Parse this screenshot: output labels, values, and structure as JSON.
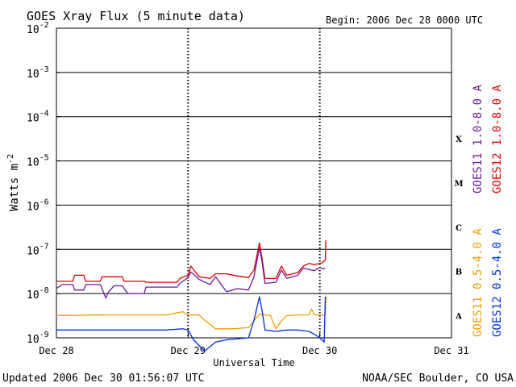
{
  "chart_data": {
    "type": "line",
    "title": "GOES Xray Flux (5 minute data)",
    "begin_label": "Begin:  2006 Dec 28 0000 UTC",
    "ylabel": "Watts m",
    "ylabel_exp": "-2",
    "xlabel": "Universal Time",
    "footer_left": "Updated 2006 Dec 30 01:56:07 UTC",
    "footer_right": "NOAA/SEC Boulder, CO USA",
    "y_scale": "log",
    "ylim": [
      1e-09,
      0.01
    ],
    "xlim": [
      0,
      72
    ],
    "x_unit": "hours since Dec 28 0000 UTC",
    "x_ticks": [
      {
        "x": 0,
        "label": "Dec 28"
      },
      {
        "x": 24,
        "label": "Dec 29"
      },
      {
        "x": 48,
        "label": "Dec 30"
      },
      {
        "x": 72,
        "label": "Dec 31"
      }
    ],
    "y_ticks": [
      {
        "exp": -2,
        "label": "10",
        "sup": "-2"
      },
      {
        "exp": -3,
        "label": "10",
        "sup": "-3"
      },
      {
        "exp": -4,
        "label": "10",
        "sup": "-4"
      },
      {
        "exp": -5,
        "label": "10",
        "sup": "-5"
      },
      {
        "exp": -6,
        "label": "10",
        "sup": "-6"
      },
      {
        "exp": -7,
        "label": "10",
        "sup": "-7"
      },
      {
        "exp": -8,
        "label": "10",
        "sup": "-8"
      },
      {
        "exp": -9,
        "label": "10",
        "sup": "-9"
      }
    ],
    "flare_classes": [
      {
        "label": "X",
        "exp": -4.5
      },
      {
        "label": "M",
        "exp": -5.5
      },
      {
        "label": "C",
        "exp": -6.5
      },
      {
        "label": "B",
        "exp": -7.5
      },
      {
        "label": "A",
        "exp": -8.5
      }
    ],
    "legend_top": [
      {
        "label": "GOES11 1.0-8.0 A",
        "color": "#6a1b9a"
      },
      {
        "label": "GOES12 1.0-8.0 A",
        "color": "#e00000"
      }
    ],
    "legend_bottom": [
      {
        "label": "GOES11 0.5-4.0 A",
        "color": "#f0a000"
      },
      {
        "label": "GOES12 0.5-4.0 A",
        "color": "#0030e0"
      }
    ],
    "series": [
      {
        "name": "GOES12 1.0-8.0 A",
        "color": "#e00000",
        "points": [
          [
            0,
            1.9e-08
          ],
          [
            3,
            1.9e-08
          ],
          [
            3.3,
            2.6e-08
          ],
          [
            5,
            2.6e-08
          ],
          [
            5.3,
            1.9e-08
          ],
          [
            8,
            1.9e-08
          ],
          [
            8.3,
            2.4e-08
          ],
          [
            12,
            2.4e-08
          ],
          [
            12.3,
            1.9e-08
          ],
          [
            16,
            1.9e-08
          ],
          [
            16.3,
            1.8e-08
          ],
          [
            22,
            1.8e-08
          ],
          [
            22.5,
            2.2e-08
          ],
          [
            24,
            2.6e-08
          ],
          [
            24.5,
            4.2e-08
          ],
          [
            26,
            2.4e-08
          ],
          [
            28,
            2.2e-08
          ],
          [
            29,
            2.8e-08
          ],
          [
            31,
            2.8e-08
          ],
          [
            33,
            2.5e-08
          ],
          [
            35,
            2.3e-08
          ],
          [
            36,
            3.4e-08
          ],
          [
            37,
            1.4e-07
          ],
          [
            37.5,
            6e-08
          ],
          [
            38,
            2.2e-08
          ],
          [
            40,
            2.2e-08
          ],
          [
            41,
            4.2e-08
          ],
          [
            42,
            2.6e-08
          ],
          [
            44,
            3e-08
          ],
          [
            45,
            4.2e-08
          ],
          [
            46,
            4.8e-08
          ],
          [
            47,
            4.5e-08
          ],
          [
            48,
            4.8e-08
          ],
          [
            48.5,
            5e-08
          ],
          [
            49,
            5.8e-08
          ],
          [
            49.1,
            1.6e-07
          ]
        ]
      },
      {
        "name": "GOES11 1.0-8.0 A",
        "color": "#6a1b9a",
        "points": [
          [
            0,
            1.3e-08
          ],
          [
            1,
            1.6e-08
          ],
          [
            3,
            1.6e-08
          ],
          [
            3.3,
            1.2e-08
          ],
          [
            5,
            1.2e-08
          ],
          [
            5.3,
            1.6e-08
          ],
          [
            8,
            1.6e-08
          ],
          [
            9,
            8e-09
          ],
          [
            9.5,
            1.1e-08
          ],
          [
            10.5,
            1.5e-08
          ],
          [
            12,
            1.5e-08
          ],
          [
            13,
            1e-08
          ],
          [
            16,
            1e-08
          ],
          [
            16.3,
            1.4e-08
          ],
          [
            22,
            1.4e-08
          ],
          [
            22.5,
            1.7e-08
          ],
          [
            24,
            2.3e-08
          ],
          [
            24.5,
            3.1e-08
          ],
          [
            26,
            2.1e-08
          ],
          [
            28,
            1.6e-08
          ],
          [
            29,
            2.4e-08
          ],
          [
            31,
            1.1e-08
          ],
          [
            33,
            1.3e-08
          ],
          [
            35,
            1.2e-08
          ],
          [
            36,
            2.4e-08
          ],
          [
            37,
            1.1e-07
          ],
          [
            37.5,
            5e-08
          ],
          [
            38,
            1.7e-08
          ],
          [
            40,
            1.8e-08
          ],
          [
            41,
            3.4e-08
          ],
          [
            42,
            2.2e-08
          ],
          [
            44,
            2.6e-08
          ],
          [
            45,
            3.8e-08
          ],
          [
            46,
            3.5e-08
          ],
          [
            47,
            3.3e-08
          ],
          [
            48,
            3.9e-08
          ],
          [
            48.5,
            3.6e-08
          ],
          [
            49,
            3.7e-08
          ]
        ]
      },
      {
        "name": "GOES11 0.5-4.0 A",
        "color": "#f0a000",
        "points": [
          [
            0,
            3.2e-09
          ],
          [
            10,
            3.3e-09
          ],
          [
            20,
            3.3e-09
          ],
          [
            23,
            3.9e-09
          ],
          [
            24,
            3.3e-09
          ],
          [
            26,
            3.3e-09
          ],
          [
            27,
            2.5e-09
          ],
          [
            29,
            1.6e-09
          ],
          [
            32,
            1.6e-09
          ],
          [
            35,
            1.7e-09
          ],
          [
            36,
            2.4e-09
          ],
          [
            37,
            3.4e-09
          ],
          [
            39,
            3.2e-09
          ],
          [
            40,
            1.6e-09
          ],
          [
            41,
            2.4e-09
          ],
          [
            42,
            3.2e-09
          ],
          [
            44,
            3.3e-09
          ],
          [
            46,
            3.3e-09
          ],
          [
            46.5,
            4.5e-09
          ],
          [
            47,
            3.3e-09
          ],
          [
            48,
            3.3e-09
          ],
          [
            49,
            3.3e-09
          ],
          [
            49.1,
            9e-09
          ]
        ]
      },
      {
        "name": "GOES12 0.5-4.0 A",
        "color": "#0030e0",
        "points": [
          [
            0,
            1.5e-09
          ],
          [
            10,
            1.5e-09
          ],
          [
            20,
            1.5e-09
          ],
          [
            23,
            1.6e-09
          ],
          [
            24,
            1.5e-09
          ],
          [
            25,
            9e-10
          ],
          [
            27,
            5e-10
          ],
          [
            29,
            8e-10
          ],
          [
            31,
            9e-10
          ],
          [
            35,
            1e-09
          ],
          [
            36,
            2.5e-09
          ],
          [
            37,
            8.5e-09
          ],
          [
            37.5,
            4e-09
          ],
          [
            38,
            1.5e-09
          ],
          [
            40,
            1.4e-09
          ],
          [
            42,
            1.5e-09
          ],
          [
            44,
            1.5e-09
          ],
          [
            46,
            1.4e-09
          ],
          [
            47,
            1.2e-09
          ],
          [
            48,
            1e-09
          ],
          [
            48.8,
            8e-10
          ],
          [
            49,
            8.5e-09
          ]
        ]
      }
    ]
  }
}
